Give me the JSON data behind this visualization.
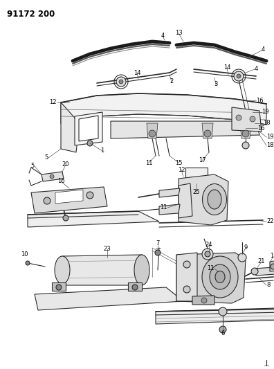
{
  "title": "91172 200",
  "bg_color": "#ffffff",
  "lc": "#2a2a2a",
  "tc": "#000000",
  "figsize": [
    3.96,
    5.33
  ],
  "dpi": 100,
  "fs_title": 8.5,
  "fs_label": 6.0
}
